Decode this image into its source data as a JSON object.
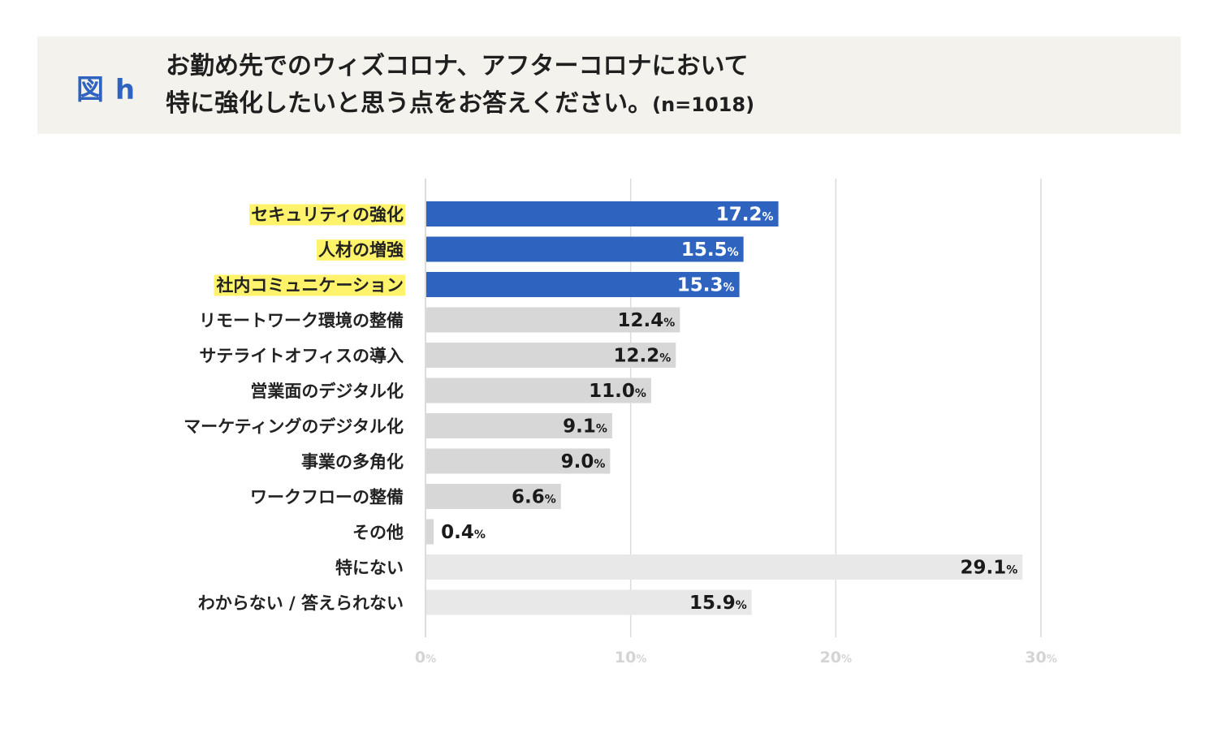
{
  "header": {
    "figure_label": "図 h",
    "title_line1": "お勤め先でのウィズコロナ、アフターコロナにおいて",
    "title_line2": "特に強化したいと思う点をお答えください。",
    "sample_size": "(n=1018)"
  },
  "colors": {
    "highlight_bar": "#2e63bf",
    "normal_bar": "#d7d7d7",
    "none_bar": "#e8e8e8",
    "label_highlight": "#fff36b",
    "gridline": "#dcdcdc"
  },
  "chart_data": {
    "type": "bar",
    "orientation": "horizontal",
    "unit": "%",
    "categories": [
      "セキュリティの強化",
      "人材の増強",
      "社内コミュニケーション",
      "リモートワーク環境の整備",
      "サテライトオフィスの導入",
      "営業面のデジタル化",
      "マーケティングのデジタル化",
      "事業の多角化",
      "ワークフローの整備",
      "その他",
      "特にない",
      "わからない / 答えられない"
    ],
    "values": [
      17.2,
      15.5,
      15.3,
      12.4,
      12.2,
      11.0,
      9.1,
      9.0,
      6.6,
      0.4,
      29.1,
      15.9
    ],
    "value_labels": [
      "17.2",
      "15.5",
      "15.3",
      "12.4",
      "12.2",
      "11.0",
      "9.1",
      "9.0",
      "6.6",
      "0.4",
      "29.1",
      "15.9"
    ],
    "highlighted": [
      true,
      true,
      true,
      false,
      false,
      false,
      false,
      false,
      false,
      false,
      false,
      false
    ],
    "bar_style": [
      "highlight",
      "highlight",
      "highlight",
      "normal",
      "normal",
      "normal",
      "normal",
      "normal",
      "normal",
      "normal",
      "none",
      "none"
    ],
    "xlim": [
      0,
      30
    ],
    "xticks": [
      0,
      10,
      20,
      30
    ],
    "tick_labels": [
      "0",
      "10",
      "20",
      "30"
    ],
    "grid": true,
    "legend": "none"
  }
}
